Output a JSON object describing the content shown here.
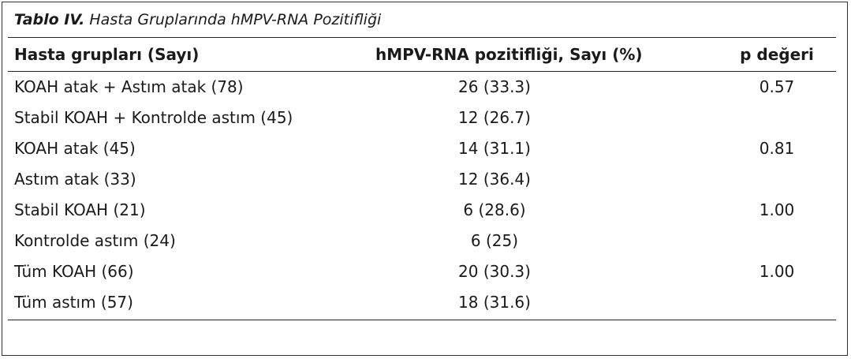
{
  "caption": {
    "label": "Tablo IV.",
    "title": "Hasta Gruplarında hMPV-RNA Pozitifliği"
  },
  "columns": [
    "Hasta grupları (Sayı)",
    "hMPV-RNA pozitifliği, Sayı (%)",
    "p değeri"
  ],
  "rows": [
    {
      "group": "KOAH atak + Astım atak (78)",
      "positivity": "26 (33.3)",
      "p": "0.57"
    },
    {
      "group": "Stabil KOAH + Kontrolde astım (45)",
      "positivity": "12 (26.7)",
      "p": ""
    },
    {
      "group": "KOAH atak (45)",
      "positivity": "14 (31.1)",
      "p": "0.81"
    },
    {
      "group": "Astım atak (33)",
      "positivity": "12 (36.4)",
      "p": ""
    },
    {
      "group": "Stabil KOAH (21)",
      "positivity": "6 (28.6)",
      "p": "1.00"
    },
    {
      "group": "Kontrolde astım (24)",
      "positivity": "6 (25)",
      "p": ""
    },
    {
      "group": "Tüm KOAH (66)",
      "positivity": "20 (30.3)",
      "p": "1.00"
    },
    {
      "group": "Tüm astım (57)",
      "positivity": "18 (31.6)",
      "p": ""
    }
  ]
}
